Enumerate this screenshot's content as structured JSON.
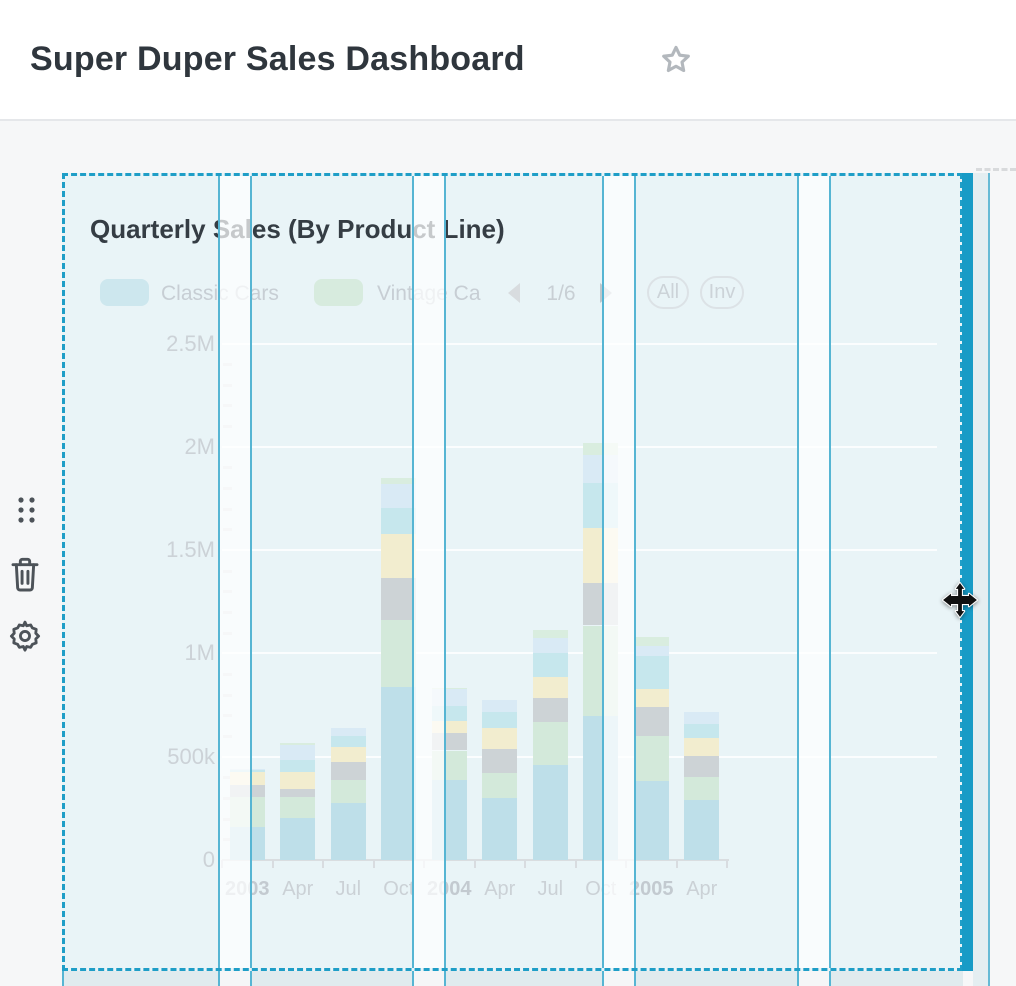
{
  "header": {
    "title": "Super Duper Sales Dashboard",
    "favorite_icon": "star-outline"
  },
  "side_controls": {
    "drag_handle_icon": "grip-dots",
    "delete_icon": "trash",
    "settings_icon": "gear"
  },
  "cursor": "move",
  "card": {
    "title": "Quarterly Sales (By Product Line)",
    "legend": {
      "items": [
        {
          "label": "Classic Cars",
          "color": "#cde7ee"
        },
        {
          "label": "Vintage Ca",
          "color": "#d7ebde"
        }
      ],
      "pager": {
        "current": "1/6",
        "prev_icon": "caret-left",
        "next_icon": "caret-right"
      },
      "buttons": [
        {
          "label": "All"
        },
        {
          "label": "Inv"
        }
      ]
    }
  },
  "chart_data": {
    "type": "bar",
    "stacked": true,
    "title": "Quarterly Sales (By Product Line)",
    "categories": [
      "2003 Q1",
      "2003 Q2 (Apr)",
      "2003 Q3 (Jul)",
      "2003 Q4 (Oct)",
      "2004 Q1",
      "2004 Q2 (Apr)",
      "2004 Q3 (Jul)",
      "2004 Q4 (Oct)",
      "2005 Q1",
      "2005 Q2 (Apr)"
    ],
    "x_tick_labels": [
      "2003",
      "Apr",
      "Jul",
      "Oct",
      "2004",
      "Apr",
      "Jul",
      "Oct",
      "2005",
      "Apr"
    ],
    "x_bold_flags": [
      true,
      false,
      false,
      false,
      true,
      false,
      false,
      false,
      true,
      false
    ],
    "ylabel": "",
    "xlabel": "",
    "ylim": [
      0,
      2500000
    ],
    "y_tick_labels": [
      "2.5M",
      "2M",
      "1.5M",
      "1M",
      "500k",
      "0"
    ],
    "y_tick_values": [
      2500000,
      2000000,
      1500000,
      1000000,
      500000,
      0
    ],
    "grid": true,
    "legend_position": "top",
    "legend_pages": "1/6",
    "series": [
      {
        "name": "Classic Cars",
        "color": "#bedfe9",
        "values": [
          160000,
          205000,
          275000,
          835000,
          385000,
          300000,
          460000,
          695000,
          380000,
          290000
        ]
      },
      {
        "name": "Vintage Ca (truncated)",
        "color": "#d3e9da",
        "values": [
          145000,
          100000,
          110000,
          325000,
          145000,
          120000,
          210000,
          440000,
          220000,
          110000
        ]
      },
      {
        "name": "unlabeled (gray)",
        "color": "#cdd3d6",
        "values": [
          58000,
          40000,
          87000,
          205000,
          87000,
          115000,
          115000,
          205000,
          140000,
          105000
        ]
      },
      {
        "name": "unlabeled (cream)",
        "color": "#f2edcf",
        "values": [
          63000,
          82000,
          77000,
          212000,
          58000,
          105000,
          100000,
          265000,
          87000,
          87000
        ]
      },
      {
        "name": "unlabeled (cyan)",
        "color": "#c6e7ed",
        "values": [
          10000,
          58000,
          53000,
          126000,
          72000,
          75000,
          115000,
          218000,
          160000,
          68000
        ]
      },
      {
        "name": "unlabeled (pale blue)",
        "color": "#d9eaf5",
        "values": [
          5000,
          72000,
          39000,
          116000,
          82000,
          60000,
          73000,
          136000,
          47000,
          55000
        ]
      },
      {
        "name": "unlabeled (light green)",
        "color": "#d9eddf",
        "values": [
          0,
          10000,
          0,
          29000,
          5000,
          0,
          39000,
          58000,
          45000,
          0
        ]
      }
    ]
  }
}
